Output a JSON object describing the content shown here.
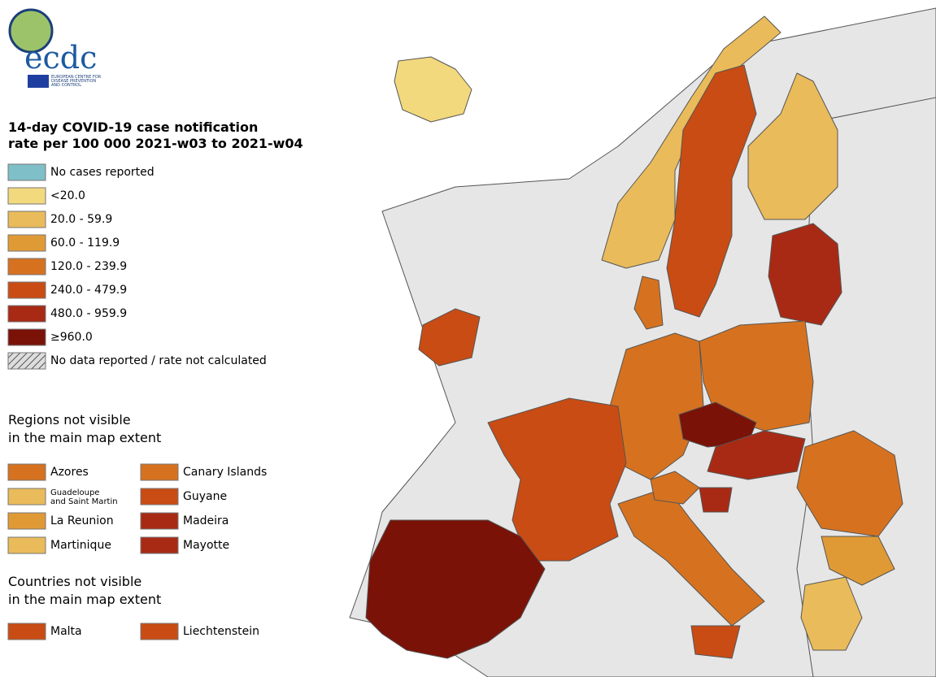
{
  "logo": {
    "name": "ecdc",
    "subtitle": [
      "EUROPEAN CENTRE FOR",
      "DISEASE PREVENTION",
      "AND CONTROL"
    ]
  },
  "legend": {
    "title": [
      "14-day COVID-19 case notification",
      "rate per 100 000 2021-w03 to 2021-w04"
    ],
    "items": [
      {
        "label": "No cases reported",
        "color": "#7fbfc8"
      },
      {
        "label": "<20.0",
        "color": "#f2d97e"
      },
      {
        "label": "20.0 - 59.9",
        "color": "#eabb5a"
      },
      {
        "label": "60.0 - 119.9",
        "color": "#e09a35"
      },
      {
        "label": "120.0 - 239.9",
        "color": "#d6721f"
      },
      {
        "label": "240.0 - 479.9",
        "color": "#c94c14"
      },
      {
        "label": "480.0 - 959.9",
        "color": "#a82a14"
      },
      {
        "label": "≥960.0",
        "color": "#7a1208"
      },
      {
        "label": "No data reported / rate not calculated",
        "color": "hatch"
      }
    ]
  },
  "regions": {
    "title": [
      "Regions not visible",
      "in the main map extent"
    ],
    "items": [
      {
        "label": [
          "Azores"
        ],
        "color": "#d6721f"
      },
      {
        "label": [
          "Canary Islands"
        ],
        "color": "#d6721f"
      },
      {
        "label": [
          "Guadeloupe",
          "and Saint Martin"
        ],
        "color": "#eabb5a"
      },
      {
        "label": [
          "Guyane"
        ],
        "color": "#c94c14"
      },
      {
        "label": [
          "La Reunion"
        ],
        "color": "#e09a35"
      },
      {
        "label": [
          "Madeira"
        ],
        "color": "#a82a14"
      },
      {
        "label": [
          "Martinique"
        ],
        "color": "#eabb5a"
      },
      {
        "label": [
          "Mayotte"
        ],
        "color": "#a82a14"
      }
    ]
  },
  "countries": {
    "title": [
      "Countries not visible",
      "in the main map extent"
    ],
    "items": [
      {
        "label": [
          "Malta"
        ],
        "color": "#c94c14"
      },
      {
        "label": [
          "Liechtenstein"
        ],
        "color": "#c94c14"
      }
    ]
  }
}
